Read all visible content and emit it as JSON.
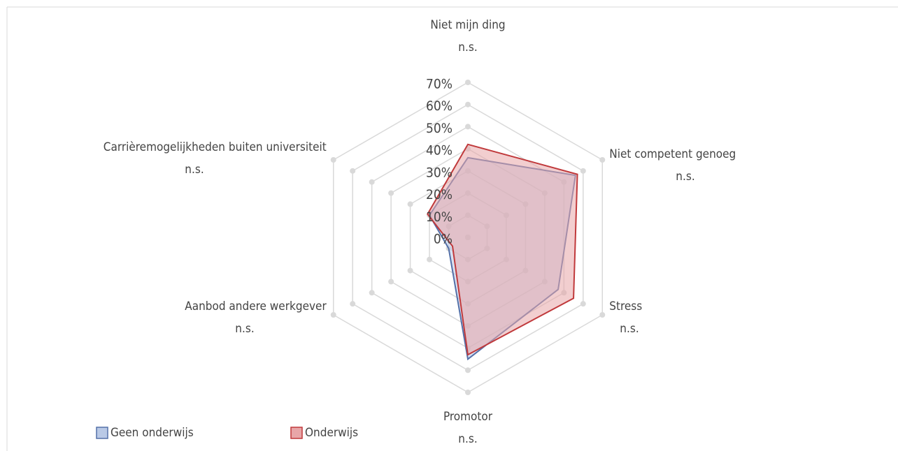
{
  "chart_data": {
    "type": "radar",
    "categories": [
      "Niet mijn ding",
      "Niet competent genoeg",
      "Stress",
      "Promotor",
      "Aanbod andere werkgever",
      "Carrièremogelijkheden buiten universiteit"
    ],
    "category_notes": [
      "n.s.",
      "n.s.",
      "n.s.",
      "n.s.",
      "n.s.",
      "n.s."
    ],
    "series": [
      {
        "name": "Geen onderwijs",
        "color": "#5470a8",
        "fill": "#b9c9e6",
        "values": [
          36,
          56,
          47,
          55,
          10,
          20
        ]
      },
      {
        "name": "Onderwijs",
        "color": "#c0393b",
        "fill": "#e8a6a8",
        "values": [
          42,
          57,
          55,
          53,
          8,
          21
        ]
      }
    ],
    "ylim": [
      0,
      70
    ],
    "yticks": [
      {
        "value": 0,
        "label": "0%"
      },
      {
        "value": 10,
        "label": "10%"
      },
      {
        "value": 20,
        "label": "20%"
      },
      {
        "value": 30,
        "label": "30%"
      },
      {
        "value": 40,
        "label": "40%"
      },
      {
        "value": 50,
        "label": "50%"
      },
      {
        "value": 60,
        "label": "60%"
      },
      {
        "value": 70,
        "label": "70%"
      }
    ],
    "grid": true,
    "legend": "bottom-left"
  }
}
